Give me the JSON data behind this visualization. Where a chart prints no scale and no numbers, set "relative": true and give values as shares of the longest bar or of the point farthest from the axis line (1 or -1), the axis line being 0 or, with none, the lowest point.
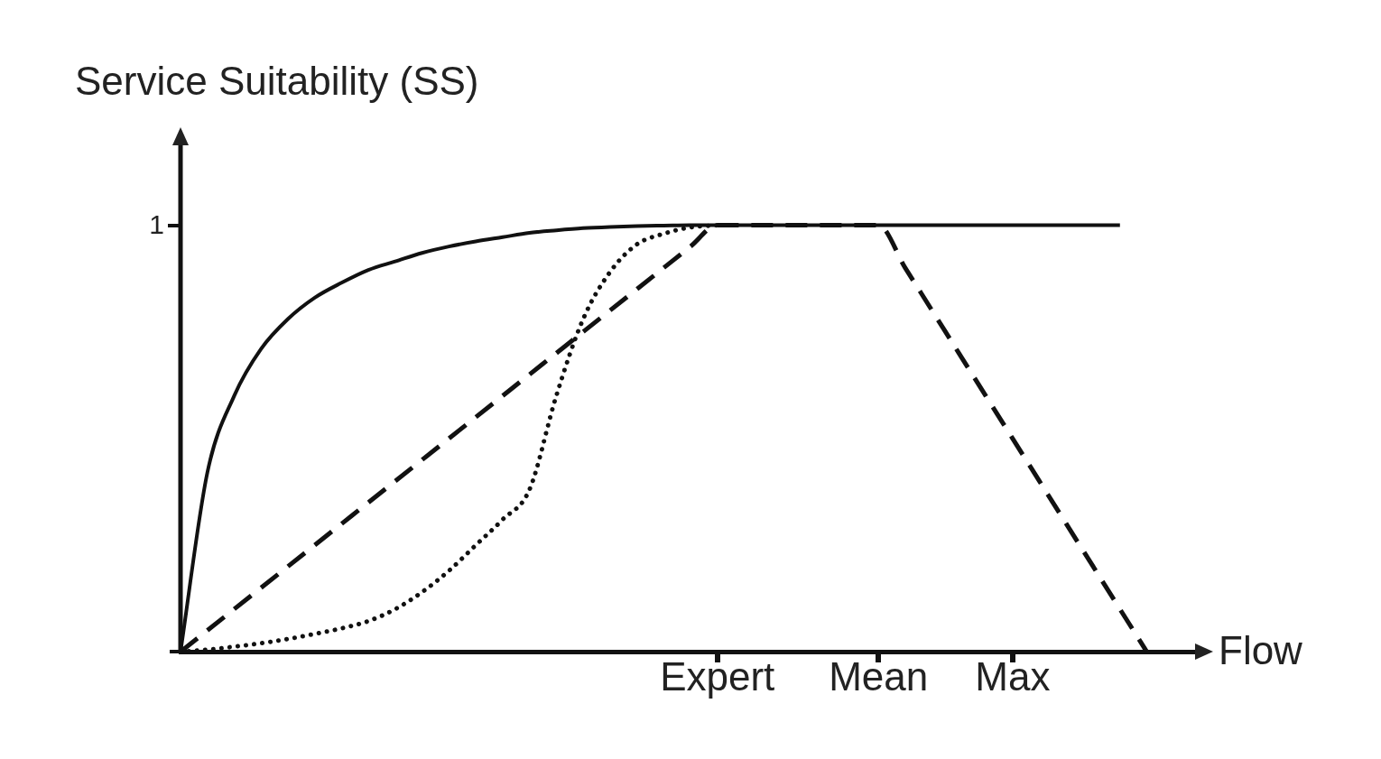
{
  "chart_data": {
    "type": "line",
    "relative": true,
    "ylabel": "Service Suitability (SS)",
    "xlabel": "Flow",
    "annotations": [
      "1"
    ],
    "grid": false,
    "legend": false,
    "marker": "none",
    "categories": [
      null,
      null,
      null,
      null,
      null,
      null,
      null,
      null,
      null,
      null,
      null,
      null,
      null,
      null,
      null,
      null,
      null,
      null,
      null,
      null,
      "Expert",
      null,
      null,
      null,
      null,
      null,
      "Mean",
      null,
      null,
      null,
      null,
      "Max",
      null,
      null,
      null,
      null,
      null,
      null,
      null
    ],
    "series": [
      {
        "color": "#111111",
        "line_style": "solid",
        "values": [
          0,
          0.42,
          0.6,
          0.71,
          0.78,
          0.83,
          0.865,
          0.895,
          0.915,
          0.935,
          0.95,
          0.962,
          0.972,
          0.982,
          0.988,
          0.993,
          0.996,
          0.998,
          0.999,
          1,
          1,
          1,
          1,
          1,
          1,
          1,
          1,
          1,
          1,
          1,
          1,
          1,
          1,
          1,
          1,
          1,
          null,
          null,
          null
        ]
      },
      {
        "color": "#111111",
        "line_style": "dashed",
        "values": [
          0,
          0.05,
          0.1,
          0.15,
          0.2,
          0.25,
          0.3,
          0.35,
          0.4,
          0.45,
          0.5,
          0.55,
          0.6,
          0.65,
          0.7,
          0.75,
          0.8,
          0.85,
          0.9,
          0.95,
          1,
          1,
          1,
          1,
          1,
          1,
          1,
          0.9,
          0.8,
          0.7,
          0.6,
          0.5,
          0.4,
          0.3,
          0.2,
          0.1,
          0,
          null,
          null
        ]
      },
      {
        "color": "#111111",
        "line_style": "dotted",
        "values": [
          0,
          0.005,
          0.012,
          0.02,
          0.03,
          0.042,
          0.055,
          0.072,
          0.1,
          0.14,
          0.19,
          0.25,
          0.31,
          0.38,
          0.6,
          0.78,
          0.89,
          0.955,
          0.98,
          0.995,
          1,
          null,
          null,
          null,
          null,
          null,
          null,
          null,
          null,
          null,
          null,
          null,
          null,
          null,
          null,
          null,
          null,
          null,
          null
        ]
      }
    ]
  }
}
